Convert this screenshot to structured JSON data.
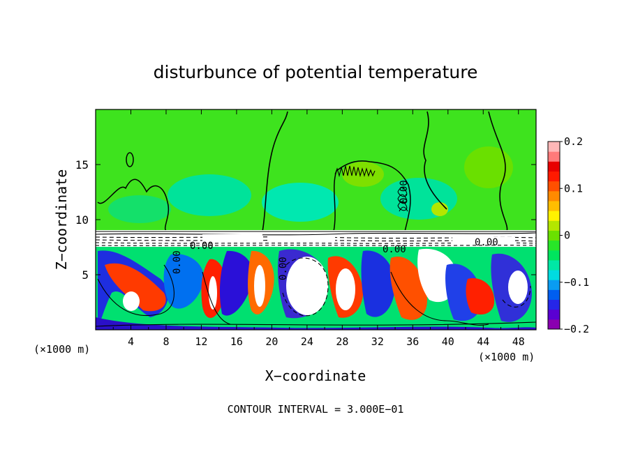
{
  "chart_data": {
    "type": "heatmap",
    "title": "disturbunce of potential temperature",
    "xlabel": "X−coordinate",
    "ylabel": "Z−coordinate",
    "x_unit": "(×1000 m)",
    "y_unit": "(×1000 m)",
    "xlim": [
      0,
      50
    ],
    "ylim": [
      0,
      20
    ],
    "x_ticks": [
      4,
      8,
      12,
      16,
      20,
      24,
      28,
      32,
      36,
      40,
      44,
      48
    ],
    "y_ticks": [
      5,
      10,
      15
    ],
    "colorbar": {
      "range": [
        -0.2,
        0.2
      ],
      "tick_values": [
        0.2,
        0.1,
        0,
        -0.1,
        -0.2
      ],
      "tick_labels": [
        "0.2",
        "0.1",
        "0",
        "−0.1",
        "−0.2"
      ],
      "colors": [
        "#8a00b0",
        "#5a00d2",
        "#2626e8",
        "#005ef0",
        "#0a9cf2",
        "#00dce0",
        "#00e8a6",
        "#00e45e",
        "#28e628",
        "#6ae000",
        "#b4e600",
        "#fff200",
        "#ffbe00",
        "#ff8a00",
        "#ff5000",
        "#ff1a00",
        "#e80000",
        "#ff7a7a",
        "#ffb8b8"
      ]
    },
    "contour_label": "0.00",
    "footer": "CONTOUR INTERVAL = 3.000E−01"
  }
}
